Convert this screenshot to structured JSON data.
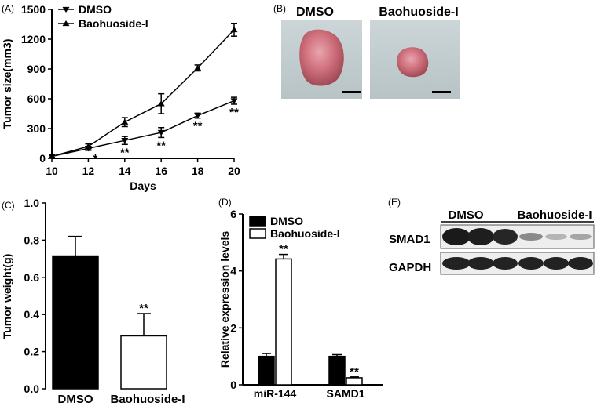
{
  "panels": {
    "A": {
      "tag": "(A)",
      "chart_data": {
        "type": "line",
        "x": [
          10,
          12,
          14,
          16,
          18,
          20
        ],
        "xlabel": "Days",
        "ylabel": "Tumor size(mm3)",
        "xlim": [
          10,
          20
        ],
        "ylim": [
          0,
          1500
        ],
        "xticks": [
          "10",
          "12",
          "14",
          "16",
          "18",
          "20"
        ],
        "yticks": [
          "0",
          "300",
          "600",
          "900",
          "1200",
          "1500"
        ],
        "legend_position": "top-left",
        "series": [
          {
            "name": "DMSO",
            "marker": "triangle-down",
            "values": [
              20,
              100,
              180,
              260,
              430,
              580
            ],
            "errors": [
              10,
              20,
              40,
              50,
              25,
              35
            ],
            "annotations": [
              "",
              "*",
              "**",
              "**",
              "**",
              "**"
            ]
          },
          {
            "name": "Baohuoside-I",
            "marker": "triangle-up",
            "values": [
              20,
              120,
              365,
              550,
              910,
              1295
            ],
            "errors": [
              10,
              25,
              45,
              100,
              30,
              65
            ],
            "annotations": [
              "",
              "",
              "",
              "",
              "",
              ""
            ]
          }
        ]
      }
    },
    "B": {
      "tag": "(B)",
      "labels": [
        "DMSO",
        "Baohuoside-I"
      ]
    },
    "C": {
      "tag": "(C)",
      "chart_data": {
        "type": "bar",
        "categories": [
          "DMSO",
          "Baohuoside-I"
        ],
        "values": [
          0.715,
          0.285
        ],
        "errors": [
          0.105,
          0.12
        ],
        "fills": [
          "#000000",
          "#ffffff"
        ],
        "annotations": [
          "",
          "**"
        ],
        "ylabel": "Tumor weight(g)",
        "ylim": [
          0,
          1.0
        ],
        "yticks": [
          "0.0",
          "0.2",
          "0.4",
          "0.6",
          "0.8",
          "1.0"
        ]
      }
    },
    "D": {
      "tag": "(D)",
      "chart_data": {
        "type": "bar",
        "categories": [
          "miR-144",
          "SAMD1"
        ],
        "ylabel": "Relative expression levels",
        "ylim": [
          0,
          6
        ],
        "yticks": [
          "0",
          "2",
          "4",
          "6"
        ],
        "legend_position": "top-left",
        "series": [
          {
            "name": "DMSO",
            "fill": "#000000",
            "values": [
              1.0,
              1.0
            ],
            "errors": [
              0.1,
              0.06
            ],
            "annotations": [
              "",
              ""
            ]
          },
          {
            "name": "Baohuoside-I",
            "fill": "#ffffff",
            "values": [
              4.42,
              0.25
            ],
            "errors": [
              0.16,
              0.03
            ],
            "annotations": [
              "**",
              "**"
            ]
          }
        ]
      }
    },
    "E": {
      "tag": "(E)",
      "group_labels": [
        "DMSO",
        "Baohuoside-I"
      ],
      "row_labels": [
        "SMAD1",
        "GAPDH"
      ]
    }
  }
}
